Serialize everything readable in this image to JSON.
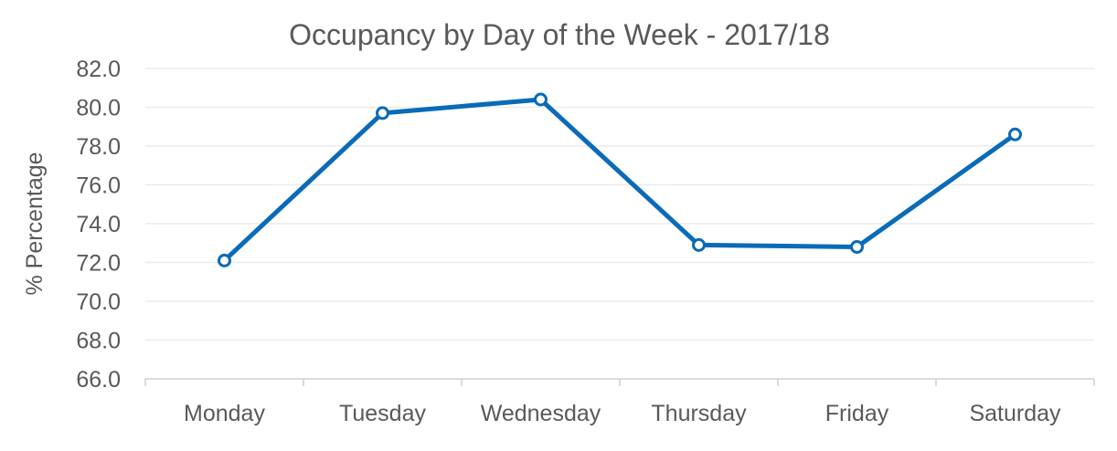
{
  "chart_data": {
    "type": "line",
    "title": "Occupancy by Day of the Week - 2017/18",
    "xlabel": "",
    "ylabel": "% Percentage",
    "categories": [
      "Monday",
      "Tuesday",
      "Wednesday",
      "Thursday",
      "Friday",
      "Saturday"
    ],
    "series": [
      {
        "values": [
          72.1,
          79.7,
          80.4,
          72.9,
          72.8,
          78.6
        ],
        "color": "#0a6bb8"
      }
    ],
    "ylim": [
      66.0,
      82.0
    ],
    "yticks": [
      "66.0",
      "68.0",
      "70.0",
      "72.0",
      "74.0",
      "76.0",
      "78.0",
      "80.0",
      "82.0"
    ],
    "grid": true,
    "legend": "none"
  }
}
